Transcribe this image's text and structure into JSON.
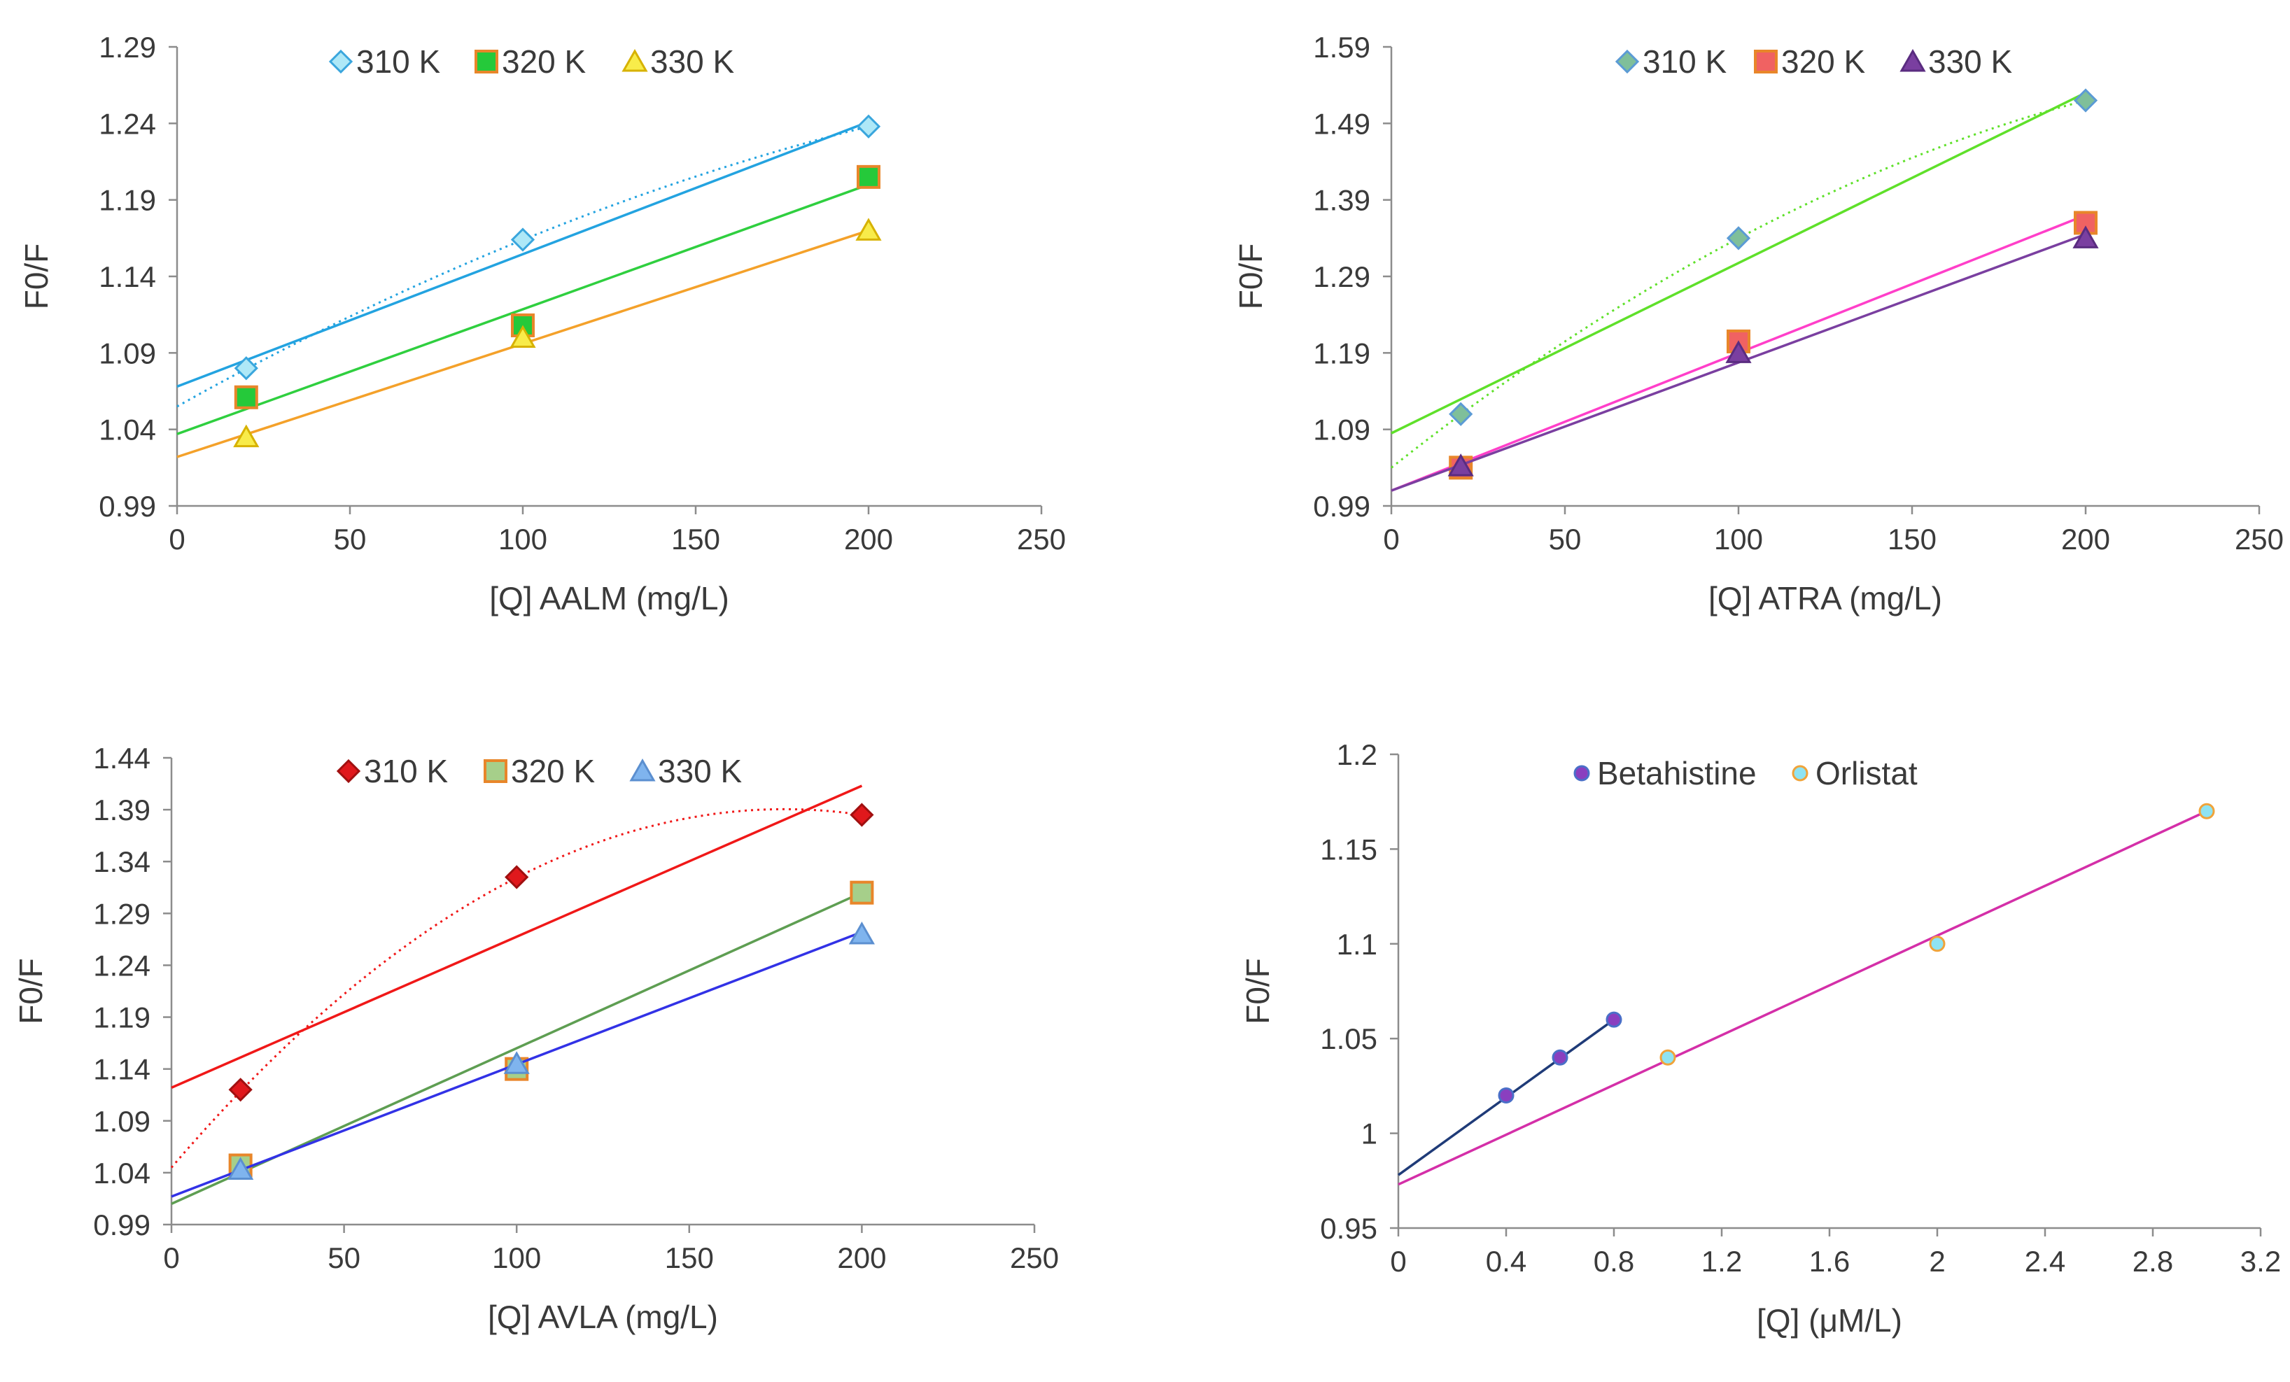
{
  "chart_data": [
    {
      "type": "scatter",
      "title": "",
      "xlabel": "[Q] AALM (mg/L)",
      "ylabel": "F0/F",
      "xlim": [
        0,
        250
      ],
      "ylim": [
        0.99,
        1.29
      ],
      "xticks": [
        0,
        50,
        100,
        150,
        200,
        250
      ],
      "yticks": [
        0.99,
        1.04,
        1.09,
        1.14,
        1.19,
        1.24,
        1.29
      ],
      "xtick_labels": [
        "0",
        "50",
        "100",
        "150",
        "200",
        "250"
      ],
      "ytick_labels": [
        "0.99",
        "1.04",
        "1.09",
        "1.14",
        "1.19",
        "1.24",
        "1.29"
      ],
      "legend": "top",
      "series": [
        {
          "name": "310 K",
          "x": [
            20,
            100,
            200
          ],
          "y": [
            1.08,
            1.164,
            1.238
          ],
          "marker": "diamond",
          "fill": "#aee8f7",
          "edge": "#3aa6dd",
          "fit_line": {
            "from": [
              0,
              1.068
            ],
            "to": [
              200,
              1.241
            ],
            "color": "#23a3e0"
          },
          "fit_curve": {
            "points": [
              [
                0,
                1.055
              ],
              [
                200,
                1.238
              ]
            ],
            "color": "#23a3e0"
          }
        },
        {
          "name": "320 K",
          "x": [
            20,
            100,
            200
          ],
          "y": [
            1.061,
            1.108,
            1.205
          ],
          "marker": "square",
          "fill": "#25c93a",
          "edge": "#e8862a",
          "fit_line": {
            "from": [
              0,
              1.037
            ],
            "to": [
              200,
              1.2
            ],
            "color": "#2fcf3f"
          }
        },
        {
          "name": "330 K",
          "x": [
            20,
            100,
            200
          ],
          "y": [
            1.035,
            1.1,
            1.17
          ],
          "marker": "triangle",
          "fill": "#f8ec4a",
          "edge": "#d7b200",
          "fit_line": {
            "from": [
              0,
              1.022
            ],
            "to": [
              200,
              1.17
            ],
            "color": "#f4a12a"
          }
        }
      ]
    },
    {
      "type": "scatter",
      "title": "",
      "xlabel": "[Q] ATRA (mg/L)",
      "ylabel": "F0/F",
      "xlim": [
        0,
        250
      ],
      "ylim": [
        0.99,
        1.59
      ],
      "xticks": [
        0,
        50,
        100,
        150,
        200,
        250
      ],
      "yticks": [
        0.99,
        1.09,
        1.19,
        1.29,
        1.39,
        1.49,
        1.59
      ],
      "xtick_labels": [
        "0",
        "50",
        "100",
        "150",
        "200",
        "250"
      ],
      "ytick_labels": [
        "0.99",
        "1.09",
        "1.19",
        "1.29",
        "1.39",
        "1.49",
        "1.59"
      ],
      "legend": "top",
      "series": [
        {
          "name": "310 K",
          "x": [
            20,
            100,
            200
          ],
          "y": [
            1.11,
            1.34,
            1.52
          ],
          "marker": "diamond",
          "fill": "#7fbf9a",
          "edge": "#5b9bd5",
          "fit_line": {
            "from": [
              0,
              1.085
            ],
            "to": [
              200,
              1.53
            ],
            "color": "#5fe02a"
          },
          "fit_curve": {
            "points": [
              [
                0,
                1.04
              ],
              [
                200,
                1.52
              ]
            ],
            "color": "#5fe02a"
          }
        },
        {
          "name": "320 K",
          "x": [
            20,
            100,
            200
          ],
          "y": [
            1.04,
            1.205,
            1.36
          ],
          "marker": "square",
          "fill": "#f06262",
          "edge": "#e8862a",
          "fit_line": {
            "from": [
              0,
              1.01
            ],
            "to": [
              200,
              1.37
            ],
            "color": "#ff3fc9"
          }
        },
        {
          "name": "330 K",
          "x": [
            20,
            100,
            200
          ],
          "y": [
            1.042,
            1.19,
            1.34
          ],
          "marker": "triangle",
          "fill": "#7a3fa0",
          "edge": "#5a2c80",
          "fit_line": {
            "from": [
              0,
              1.01
            ],
            "to": [
              200,
              1.345
            ],
            "color": "#7a3fa0"
          }
        }
      ]
    },
    {
      "type": "scatter",
      "title": "",
      "xlabel": "[Q] AVLA (mg/L)",
      "ylabel": "F0/F",
      "xlim": [
        0,
        250
      ],
      "ylim": [
        0.99,
        1.44
      ],
      "xticks": [
        0,
        50,
        100,
        150,
        200,
        250
      ],
      "yticks": [
        0.99,
        1.04,
        1.09,
        1.14,
        1.19,
        1.24,
        1.29,
        1.34,
        1.39,
        1.44
      ],
      "xtick_labels": [
        "0",
        "50",
        "100",
        "150",
        "200",
        "250"
      ],
      "ytick_labels": [
        "0.99",
        "1.04",
        "1.09",
        "1.14",
        "1.19",
        "1.24",
        "1.29",
        "1.34",
        "1.39",
        "1.44"
      ],
      "legend": "top",
      "series": [
        {
          "name": "310 K",
          "x": [
            20,
            100,
            200
          ],
          "y": [
            1.12,
            1.325,
            1.385
          ],
          "marker": "diamond",
          "fill": "#e0181c",
          "edge": "#a01010",
          "fit_line": {
            "from": [
              0,
              1.122
            ],
            "to": [
              200,
              1.413
            ],
            "color": "#f01818"
          },
          "fit_curve": {
            "points": [
              [
                0,
                1.045
              ],
              [
                200,
                1.385
              ]
            ],
            "color": "#f01818"
          }
        },
        {
          "name": "320 K",
          "x": [
            20,
            100,
            200
          ],
          "y": [
            1.047,
            1.14,
            1.31
          ],
          "marker": "square",
          "fill": "#a6cf8a",
          "edge": "#e8862a",
          "fit_line": {
            "from": [
              0,
              1.01
            ],
            "to": [
              200,
              1.31
            ],
            "color": "#5e9e52"
          }
        },
        {
          "name": "330 K",
          "x": [
            20,
            100,
            200
          ],
          "y": [
            1.043,
            1.145,
            1.27
          ],
          "marker": "triangle",
          "fill": "#7fb4ee",
          "edge": "#5b8fd0",
          "fit_line": {
            "from": [
              0,
              1.017
            ],
            "to": [
              200,
              1.272
            ],
            "color": "#3232e6"
          }
        }
      ]
    },
    {
      "type": "scatter",
      "title": "",
      "xlabel": "[Q] (μM/L)",
      "ylabel": "F0/F",
      "xlim": [
        0,
        3.2
      ],
      "ylim": [
        0.95,
        1.2
      ],
      "xticks": [
        0,
        0.4,
        0.8,
        1.2,
        1.6,
        2,
        2.4,
        2.8,
        3.2
      ],
      "yticks": [
        0.95,
        1,
        1.05,
        1.1,
        1.15,
        1.2
      ],
      "xtick_labels": [
        "0",
        "0.4",
        "0.8",
        "1.2",
        "1.6",
        "2",
        "2.4",
        "2.8",
        "3.2"
      ],
      "ytick_labels": [
        "0.95",
        "1",
        "1.05",
        "1.1",
        "1.15",
        "1.2"
      ],
      "legend": "top",
      "series": [
        {
          "name": "Betahistine",
          "x": [
            0.4,
            0.6,
            0.8
          ],
          "y": [
            1.02,
            1.04,
            1.06
          ],
          "marker": "circle",
          "fill": "#8a3fbf",
          "edge": "#4a6fc8",
          "fit_line": {
            "from": [
              0,
              0.978
            ],
            "to": [
              0.8,
              1.06
            ],
            "color": "#1f3b78"
          }
        },
        {
          "name": "Orlistat",
          "x": [
            1,
            2,
            3
          ],
          "y": [
            1.04,
            1.1,
            1.17
          ],
          "marker": "circle",
          "fill": "#8fe3f2",
          "edge": "#f0a33a",
          "fit_line": {
            "from": [
              0,
              0.973
            ],
            "to": [
              3,
              1.17
            ],
            "color": "#d42fa8"
          }
        }
      ]
    }
  ]
}
